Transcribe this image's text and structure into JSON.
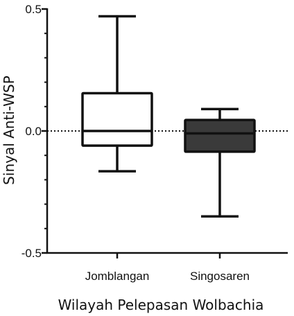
{
  "chart_data": {
    "type": "box",
    "xlabel": "Wilayah Pelepasan Wolbachia",
    "ylabel": "Sinyal Anti-WSP",
    "ylim": [
      -0.5,
      0.5
    ],
    "yticks": [
      {
        "value": 0.5,
        "label": "0.5"
      },
      {
        "value": 0.0,
        "label": "0.0"
      },
      {
        "value": -0.5,
        "label": "-0.5"
      }
    ],
    "minor_tick_step": 0.1,
    "reference_line": {
      "y": 0.0,
      "style": "dotted"
    },
    "categories": [
      "Jomblangan",
      "Singosaren"
    ],
    "boxes": [
      {
        "category": "Jomblangan",
        "min": -0.165,
        "q1": -0.06,
        "median": 0.0,
        "q3": 0.155,
        "max": 0.47,
        "fill": "#ffffff"
      },
      {
        "category": "Singosaren",
        "min": -0.35,
        "q1": -0.085,
        "median": -0.01,
        "q3": 0.045,
        "max": 0.09,
        "fill": "#3a3a3a"
      }
    ]
  }
}
